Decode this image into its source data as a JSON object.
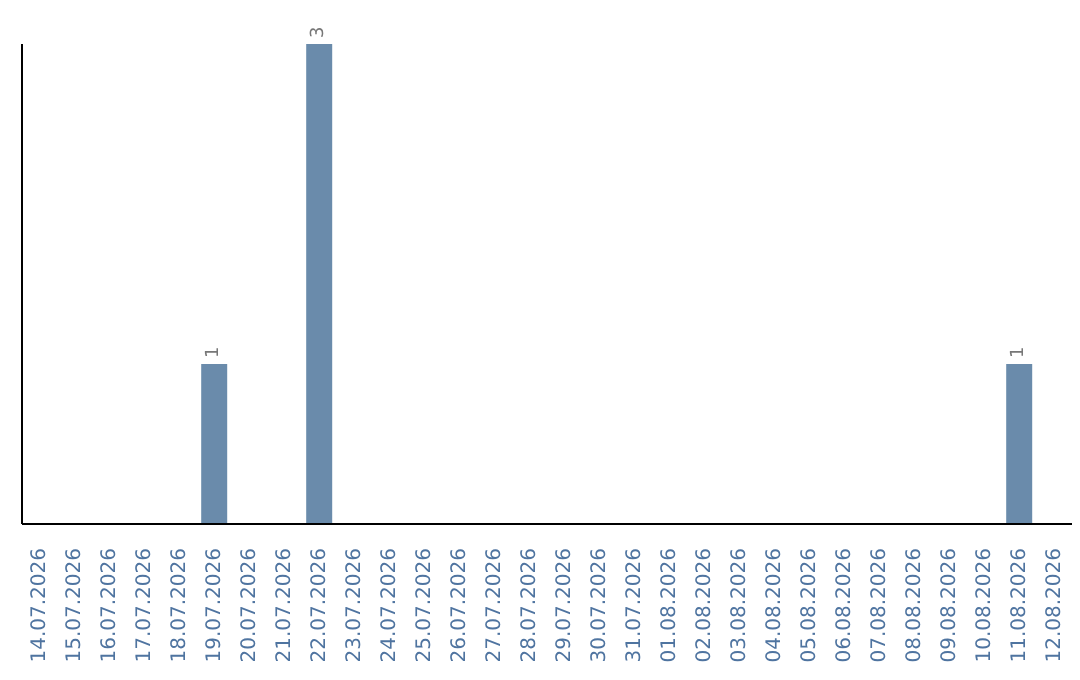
{
  "chart_data": {
    "type": "bar",
    "categories": [
      "14.07.2026",
      "15.07.2026",
      "16.07.2026",
      "17.07.2026",
      "18.07.2026",
      "19.07.2026",
      "20.07.2026",
      "21.07.2026",
      "22.07.2026",
      "23.07.2026",
      "24.07.2026",
      "25.07.2026",
      "26.07.2026",
      "27.07.2026",
      "28.07.2026",
      "29.07.2026",
      "30.07.2026",
      "31.07.2026",
      "01.08.2026",
      "02.08.2026",
      "03.08.2026",
      "04.08.2026",
      "05.08.2026",
      "06.08.2026",
      "07.08.2026",
      "08.08.2026",
      "09.08.2026",
      "10.08.2026",
      "11.08.2026",
      "12.08.2026"
    ],
    "values": [
      0,
      0,
      0,
      0,
      0,
      1,
      0,
      0,
      3,
      0,
      0,
      0,
      0,
      0,
      0,
      0,
      0,
      0,
      0,
      0,
      0,
      0,
      0,
      0,
      0,
      0,
      0,
      0,
      1,
      0
    ],
    "value_labels": [
      null,
      null,
      null,
      null,
      null,
      "1",
      null,
      null,
      "3",
      null,
      null,
      null,
      null,
      null,
      null,
      null,
      null,
      null,
      null,
      null,
      null,
      null,
      null,
      null,
      null,
      null,
      null,
      null,
      "1",
      null
    ],
    "color": "#6a8bab"
  }
}
